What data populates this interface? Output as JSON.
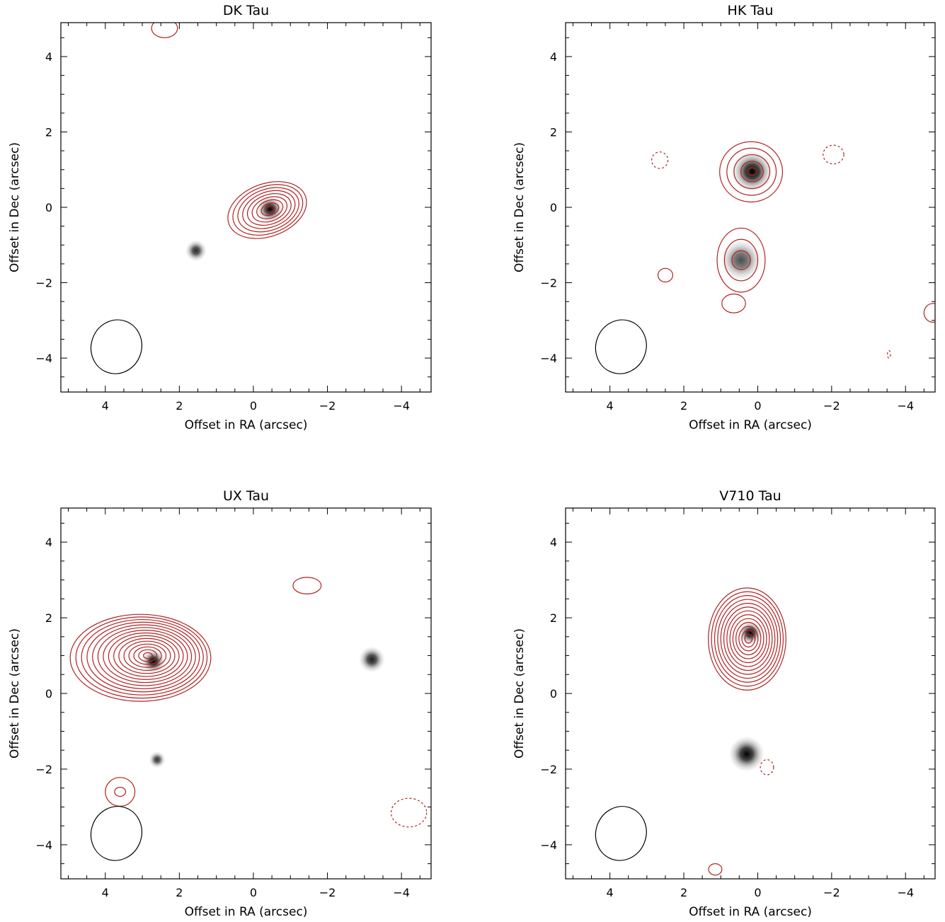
{
  "figure": {
    "panel_titles": [
      "DK Tau",
      "HK Tau",
      "UX Tau",
      "V710 Tau"
    ],
    "xlabel": "Offset in RA (arcsec)",
    "ylabel": "Offset in Dec (arcsec)"
  },
  "colors": {
    "contour": "#b22222",
    "frame": "#000000",
    "image": "#000000"
  },
  "chart_data": [
    {
      "type": "contour-image",
      "title": "DK Tau",
      "xlabel": "Offset in RA (arcsec)",
      "ylabel": "Offset in Dec (arcsec)",
      "xlim": [
        5.2,
        -4.8
      ],
      "ylim": [
        -4.9,
        4.9
      ],
      "xticks": [
        4,
        2,
        0,
        -2,
        -4
      ],
      "yticks": [
        -4,
        -2,
        0,
        2,
        4
      ],
      "tick_labels_x": [
        "4",
        "2",
        "0",
        "−2",
        "−4"
      ],
      "tick_labels_y": [
        "−4",
        "−2",
        "0",
        "2",
        "4"
      ],
      "sources": [
        {
          "x": -0.45,
          "y": -0.05,
          "strength": 1.0,
          "size": 0.22
        },
        {
          "x": 1.55,
          "y": -1.15,
          "strength": 0.85,
          "size": 0.18
        }
      ],
      "contours": [
        {
          "x": -0.45,
          "y": -0.05,
          "rx_start": 1.1,
          "ry_start": 0.7,
          "rx_end": 0.12,
          "ry_end": 0.08,
          "levels": 9,
          "rot": -20,
          "skew": 0.2,
          "dashed": false
        },
        {
          "x": 2.4,
          "y": 4.75,
          "rx_start": 0.35,
          "ry_start": 0.25,
          "rx_end": 0.35,
          "ry_end": 0.25,
          "levels": 1,
          "rot": 0,
          "skew": 0.0,
          "dashed": false
        }
      ],
      "beam": {
        "x": 3.7,
        "y": -3.7,
        "rx": 0.68,
        "ry": 0.72,
        "rot": 20
      }
    },
    {
      "type": "contour-image",
      "title": "HK Tau",
      "xlabel": "Offset in RA (arcsec)",
      "ylabel": "Offset in Dec (arcsec)",
      "xlim": [
        5.2,
        -4.8
      ],
      "ylim": [
        -4.9,
        4.9
      ],
      "xticks": [
        4,
        2,
        0,
        -2,
        -4
      ],
      "yticks": [
        -4,
        -2,
        0,
        2,
        4
      ],
      "tick_labels_x": [
        "4",
        "2",
        "0",
        "−2",
        "−4"
      ],
      "tick_labels_y": [
        "−4",
        "−2",
        "0",
        "2",
        "4"
      ],
      "sources": [
        {
          "x": 0.15,
          "y": 0.95,
          "strength": 1.0,
          "size": 0.35
        },
        {
          "x": 0.45,
          "y": -1.4,
          "strength": 0.7,
          "size": 0.35
        }
      ],
      "contours": [
        {
          "x": 0.15,
          "y": 0.95,
          "rx_start": 0.85,
          "ry_start": 0.8,
          "rx_end": 0.12,
          "ry_end": 0.1,
          "levels": 5,
          "rot": 0,
          "skew": 0.1,
          "dashed": false
        },
        {
          "x": 0.45,
          "y": -1.4,
          "rx_start": 0.65,
          "ry_start": 0.85,
          "rx_end": 0.25,
          "ry_end": 0.25,
          "levels": 3,
          "rot": 0,
          "skew": 0.0,
          "dashed": false
        },
        {
          "x": 0.65,
          "y": -2.55,
          "rx_start": 0.32,
          "ry_start": 0.25,
          "rx_end": 0.32,
          "ry_end": 0.25,
          "levels": 1,
          "rot": 0,
          "skew": 0.0,
          "dashed": false
        },
        {
          "x": 2.5,
          "y": -1.8,
          "rx_start": 0.2,
          "ry_start": 0.18,
          "rx_end": 0.2,
          "ry_end": 0.18,
          "levels": 1,
          "rot": 0,
          "skew": 0.0,
          "dashed": false
        },
        {
          "x": -4.75,
          "y": -2.8,
          "rx_start": 0.25,
          "ry_start": 0.25,
          "rx_end": 0.25,
          "ry_end": 0.25,
          "levels": 1,
          "rot": 0,
          "skew": 0.0,
          "dashed": false
        },
        {
          "x": 2.65,
          "y": 1.25,
          "rx_start": 0.22,
          "ry_start": 0.22,
          "rx_end": 0.22,
          "ry_end": 0.22,
          "levels": 1,
          "rot": 0,
          "skew": 0.0,
          "dashed": true
        },
        {
          "x": -2.05,
          "y": 1.4,
          "rx_start": 0.28,
          "ry_start": 0.25,
          "rx_end": 0.28,
          "ry_end": 0.25,
          "levels": 1,
          "rot": 0,
          "skew": 0.0,
          "dashed": true
        },
        {
          "x": -3.55,
          "y": -3.9,
          "rx_start": 0.04,
          "ry_start": 0.1,
          "rx_end": 0.04,
          "ry_end": 0.1,
          "levels": 1,
          "rot": 0,
          "skew": 0.0,
          "dashed": true
        }
      ],
      "beam": {
        "x": 3.7,
        "y": -3.7,
        "rx": 0.68,
        "ry": 0.72,
        "rot": 20
      }
    },
    {
      "type": "contour-image",
      "title": "UX Tau",
      "xlabel": "Offset in RA (arcsec)",
      "ylabel": "Offset in Dec (arcsec)",
      "xlim": [
        5.2,
        -4.8
      ],
      "ylim": [
        -4.9,
        4.9
      ],
      "xticks": [
        4,
        2,
        0,
        -2,
        -4
      ],
      "yticks": [
        -4,
        -2,
        0,
        2,
        4
      ],
      "tick_labels_x": [
        "4",
        "2",
        "0",
        "−2",
        "−4"
      ],
      "tick_labels_y": [
        "−4",
        "−2",
        "0",
        "2",
        "4"
      ],
      "sources": [
        {
          "x": 2.7,
          "y": 0.85,
          "strength": 1.0,
          "size": 0.2
        },
        {
          "x": -3.2,
          "y": 0.9,
          "strength": 0.9,
          "size": 0.22
        },
        {
          "x": 2.6,
          "y": -1.75,
          "strength": 0.8,
          "size": 0.14
        }
      ],
      "contours": [
        {
          "x": 2.85,
          "y": 1.0,
          "rx_start": 1.9,
          "ry_start": 1.15,
          "rx_end": 0.12,
          "ry_end": 0.08,
          "levels": 15,
          "rot": 0,
          "skew": 0.3,
          "dashed": false
        },
        {
          "x": -1.45,
          "y": 2.85,
          "rx_start": 0.38,
          "ry_start": 0.22,
          "rx_end": 0.38,
          "ry_end": 0.22,
          "levels": 1,
          "rot": 0,
          "skew": 0.0,
          "dashed": false
        },
        {
          "x": 3.6,
          "y": -2.6,
          "rx_start": 0.4,
          "ry_start": 0.38,
          "rx_end": 0.15,
          "ry_end": 0.12,
          "levels": 2,
          "rot": 0,
          "skew": 0.0,
          "dashed": false
        },
        {
          "x": -4.2,
          "y": -3.15,
          "rx_start": 0.48,
          "ry_start": 0.38,
          "rx_end": 0.48,
          "ry_end": 0.38,
          "levels": 1,
          "rot": 0,
          "skew": 0.0,
          "dashed": true
        }
      ],
      "beam": {
        "x": 3.7,
        "y": -3.7,
        "rx": 0.68,
        "ry": 0.72,
        "rot": 20
      }
    },
    {
      "type": "contour-image",
      "title": "V710 Tau",
      "xlabel": "Offset in RA (arcsec)",
      "ylabel": "Offset in Dec (arcsec)",
      "xlim": [
        5.2,
        -4.8
      ],
      "ylim": [
        -4.9,
        4.9
      ],
      "xticks": [
        4,
        2,
        0,
        -2,
        -4
      ],
      "yticks": [
        -4,
        -2,
        0,
        2,
        4
      ],
      "tick_labels_x": [
        "4",
        "2",
        "0",
        "−2",
        "−4"
      ],
      "tick_labels_y": [
        "−4",
        "−2",
        "0",
        "2",
        "4"
      ],
      "sources": [
        {
          "x": 0.2,
          "y": 1.6,
          "strength": 1.0,
          "size": 0.2
        },
        {
          "x": 0.3,
          "y": -1.6,
          "strength": 1.0,
          "size": 0.3
        }
      ],
      "contours": [
        {
          "x": 0.25,
          "y": 1.45,
          "rx_start": 1.05,
          "ry_start": 1.35,
          "rx_end": 0.1,
          "ry_end": 0.12,
          "levels": 13,
          "rot": 0,
          "skew": 0.1,
          "dashed": false
        },
        {
          "x": 1.15,
          "y": -4.65,
          "rx_start": 0.18,
          "ry_start": 0.15,
          "rx_end": 0.18,
          "ry_end": 0.15,
          "levels": 1,
          "rot": 0,
          "skew": 0.0,
          "dashed": false
        },
        {
          "x": -0.25,
          "y": -1.95,
          "rx_start": 0.18,
          "ry_start": 0.2,
          "rx_end": 0.18,
          "ry_end": 0.2,
          "levels": 1,
          "rot": 0,
          "skew": 0.0,
          "dashed": true
        }
      ],
      "beam": {
        "x": 3.7,
        "y": -3.7,
        "rx": 0.68,
        "ry": 0.72,
        "rot": 20
      }
    }
  ]
}
